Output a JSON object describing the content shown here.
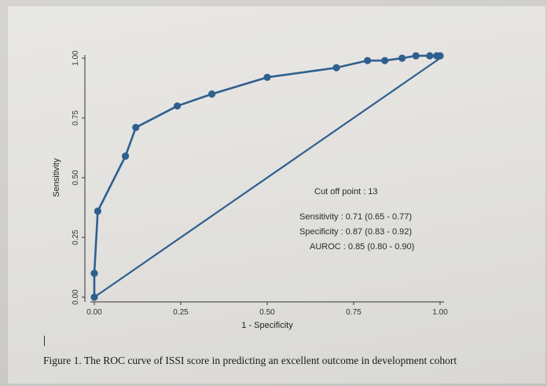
{
  "caption": "Figure 1. The ROC curve of ISSI score in predicting an excellent outcome in development cohort",
  "annotations": {
    "cutoff": "Cut off point : 13",
    "sensitivity": "Sensitivity : 0.71 (0.65 - 0.77)",
    "specificity": "Specificity : 0.87 (0.83 - 0.92)",
    "auroc": "AUROC : 0.85 (0.80 - 0.90)"
  },
  "colors": {
    "series": "#2f5f8f",
    "reference_line": "#2f5f8f",
    "axis": "#333333"
  },
  "chart_data": {
    "type": "line",
    "xlabel": "1 - Specificity",
    "ylabel": "Sensitivity",
    "xlim": [
      0,
      1
    ],
    "ylim": [
      0,
      1
    ],
    "xticks": [
      "0.00",
      "0.25",
      "0.50",
      "0.75",
      "1.00"
    ],
    "yticks": [
      "0.00",
      "0.25",
      "0.50",
      "0.75",
      "1.00"
    ],
    "grid": false,
    "legend": "none",
    "series": [
      {
        "x": [
          0.0,
          0.0,
          0.01,
          0.09,
          0.12,
          0.24,
          0.34,
          0.5,
          0.7,
          0.79,
          0.84,
          0.89,
          0.93,
          0.97,
          0.99,
          1.0
        ],
        "y": [
          0.0,
          0.1,
          0.36,
          0.59,
          0.71,
          0.8,
          0.85,
          0.92,
          0.96,
          0.99,
          0.99,
          1.0,
          1.01,
          1.01,
          1.01,
          1.01
        ]
      }
    ],
    "reference_line": {
      "x": [
        0,
        1
      ],
      "y": [
        0,
        1
      ]
    }
  }
}
